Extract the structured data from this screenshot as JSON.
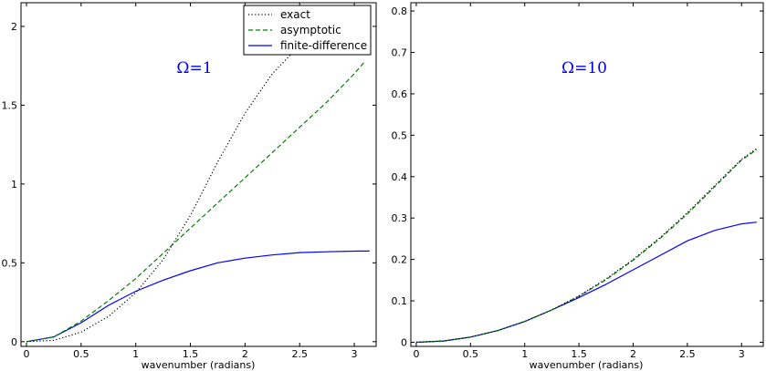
{
  "chart_data": [
    {
      "type": "line",
      "title": "",
      "annotation": "Ω=1",
      "xlabel": "wavenumber (radians)",
      "ylabel": "",
      "xlim": [
        -0.05,
        3.2
      ],
      "ylim": [
        -0.03,
        2.15
      ],
      "xticks": [
        0,
        0.5,
        1,
        1.5,
        2,
        2.5,
        3
      ],
      "xtick_labels": [
        "0",
        "0.5",
        "1",
        "1.5",
        "2",
        "2.5",
        "3"
      ],
      "yticks": [
        0,
        0.5,
        1,
        1.5,
        2
      ],
      "ytick_labels": [
        "0",
        "0.5",
        "1",
        "1.5",
        "2"
      ],
      "legend": {
        "position": "top-right",
        "entries": [
          "exact",
          "asymptotic",
          "finite-difference"
        ]
      },
      "series": [
        {
          "name": "exact",
          "style": "dotted",
          "color": "#000000",
          "x": [
            0,
            0.25,
            0.5,
            0.75,
            1.0,
            1.25,
            1.5,
            1.75,
            2.0,
            2.25,
            2.5
          ],
          "y": [
            0,
            0.008,
            0.06,
            0.16,
            0.31,
            0.52,
            0.8,
            1.14,
            1.45,
            1.7,
            1.88
          ]
        },
        {
          "name": "asymptotic",
          "style": "dashed",
          "color": "#008000",
          "x": [
            0,
            0.25,
            0.5,
            0.75,
            1.0,
            1.25,
            1.5,
            1.75,
            2.0,
            2.25,
            2.5,
            2.75,
            3.0,
            3.1
          ],
          "y": [
            0,
            0.03,
            0.13,
            0.26,
            0.4,
            0.56,
            0.72,
            0.88,
            1.04,
            1.2,
            1.36,
            1.52,
            1.7,
            1.78
          ]
        },
        {
          "name": "finite-difference",
          "style": "solid",
          "color": "#0000ff",
          "x": [
            0,
            0.25,
            0.5,
            0.75,
            1.0,
            1.25,
            1.5,
            1.75,
            2.0,
            2.25,
            2.5,
            2.75,
            3.0,
            3.14
          ],
          "y": [
            0,
            0.03,
            0.12,
            0.23,
            0.32,
            0.39,
            0.45,
            0.5,
            0.53,
            0.55,
            0.565,
            0.57,
            0.574,
            0.575
          ]
        }
      ]
    },
    {
      "type": "line",
      "title": "",
      "annotation": "Ω=10",
      "xlabel": "wavenumber (radians)",
      "ylabel": "",
      "xlim": [
        -0.05,
        3.2
      ],
      "ylim": [
        -0.01,
        0.82
      ],
      "xticks": [
        0,
        0.5,
        1,
        1.5,
        2,
        2.5,
        3
      ],
      "xtick_labels": [
        "0",
        "0.5",
        "1",
        "1.5",
        "2",
        "2.5",
        "3"
      ],
      "yticks": [
        0,
        0.1,
        0.2,
        0.3,
        0.4,
        0.5,
        0.6,
        0.7,
        0.8
      ],
      "ytick_labels": [
        "0",
        "0.1",
        "0.2",
        "0.3",
        "0.4",
        "0.5",
        "0.6",
        "0.7",
        "0.8"
      ],
      "series": [
        {
          "name": "exact",
          "style": "dotted",
          "color": "#000000",
          "x": [
            0,
            0.25,
            0.5,
            0.75,
            1.0,
            1.25,
            1.5,
            1.75,
            2.0,
            2.25,
            2.5,
            2.75,
            3.0,
            3.14
          ],
          "y": [
            0,
            0.003,
            0.0125,
            0.028,
            0.05,
            0.078,
            0.112,
            0.153,
            0.2,
            0.253,
            0.313,
            0.378,
            0.442,
            0.468
          ]
        },
        {
          "name": "asymptotic",
          "style": "dashed",
          "color": "#008000",
          "x": [
            0,
            0.25,
            0.5,
            0.75,
            1.0,
            1.25,
            1.5,
            1.75,
            2.0,
            2.25,
            2.5,
            2.75,
            3.0,
            3.14
          ],
          "y": [
            0,
            0.003,
            0.0125,
            0.028,
            0.05,
            0.078,
            0.111,
            0.151,
            0.198,
            0.251,
            0.31,
            0.375,
            0.44,
            0.465
          ]
        },
        {
          "name": "finite-difference",
          "style": "solid",
          "color": "#0000ff",
          "x": [
            0,
            0.25,
            0.5,
            0.75,
            1.0,
            1.25,
            1.5,
            1.75,
            2.0,
            2.25,
            2.5,
            2.75,
            3.0,
            3.14
          ],
          "y": [
            0,
            0.003,
            0.0125,
            0.028,
            0.05,
            0.078,
            0.108,
            0.14,
            0.175,
            0.21,
            0.245,
            0.27,
            0.286,
            0.29
          ]
        }
      ]
    }
  ]
}
